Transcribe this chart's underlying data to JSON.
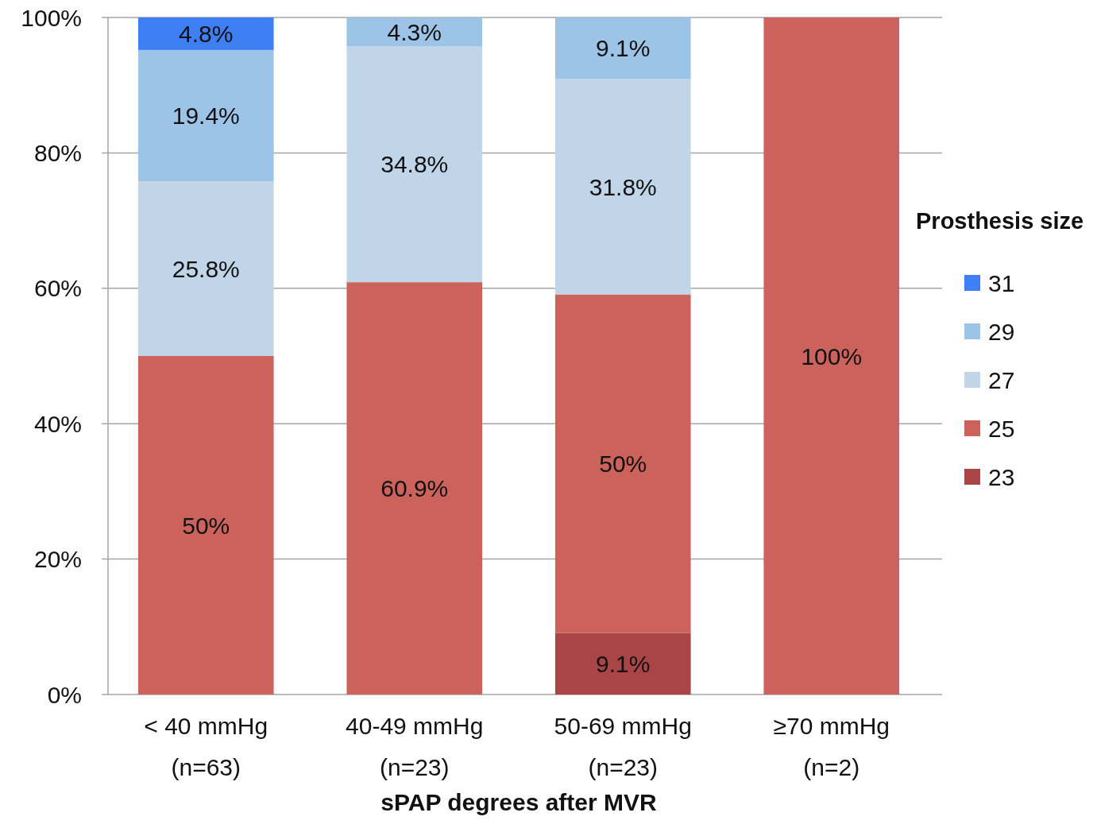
{
  "chart_data": {
    "type": "bar",
    "stacked": true,
    "xlabel": "sPAP degrees after MVR",
    "legend_title": "Prosthesis size",
    "legend": "right",
    "grid": "y",
    "categories": [
      "< 40 mmHg\n(n=63)",
      "40-49 mmHg\n(n=23)",
      "50-69 mmHg\n(n=23)",
      "≥70 mmHg\n(n=2)"
    ],
    "ylim": [
      0,
      100
    ],
    "yticks": [
      {
        "value": 0,
        "label": "0%"
      },
      {
        "value": 20,
        "label": "20%"
      },
      {
        "value": 40,
        "label": "40%"
      },
      {
        "value": 60,
        "label": "60%"
      },
      {
        "value": 80,
        "label": "80%"
      },
      {
        "value": 100,
        "label": "100%"
      }
    ],
    "series": [
      {
        "name": "23",
        "color": "#a94544",
        "values": [
          null,
          null,
          9.1,
          null
        ],
        "value_labels": [
          null,
          null,
          "9.1%",
          null
        ]
      },
      {
        "name": "25",
        "color": "#cb625c",
        "values": [
          50,
          60.9,
          50,
          100
        ],
        "value_labels": [
          "50%",
          "60.9%",
          "50%",
          "100%"
        ]
      },
      {
        "name": "27",
        "color": "#c0d6e8",
        "values": [
          25.8,
          34.8,
          31.8,
          null
        ],
        "value_labels": [
          "25.8%",
          "34.8%",
          "31.8%",
          null
        ]
      },
      {
        "name": "29",
        "color": "#9dc3e6",
        "values": [
          19.4,
          4.3,
          9.1,
          null
        ],
        "value_labels": [
          "19.4%",
          "4.3%",
          "9.1%",
          null
        ]
      },
      {
        "name": "31",
        "color": "#3f7ff5",
        "values": [
          4.8,
          null,
          null,
          null
        ],
        "value_labels": [
          "4.8%",
          null,
          null,
          null
        ]
      }
    ]
  }
}
